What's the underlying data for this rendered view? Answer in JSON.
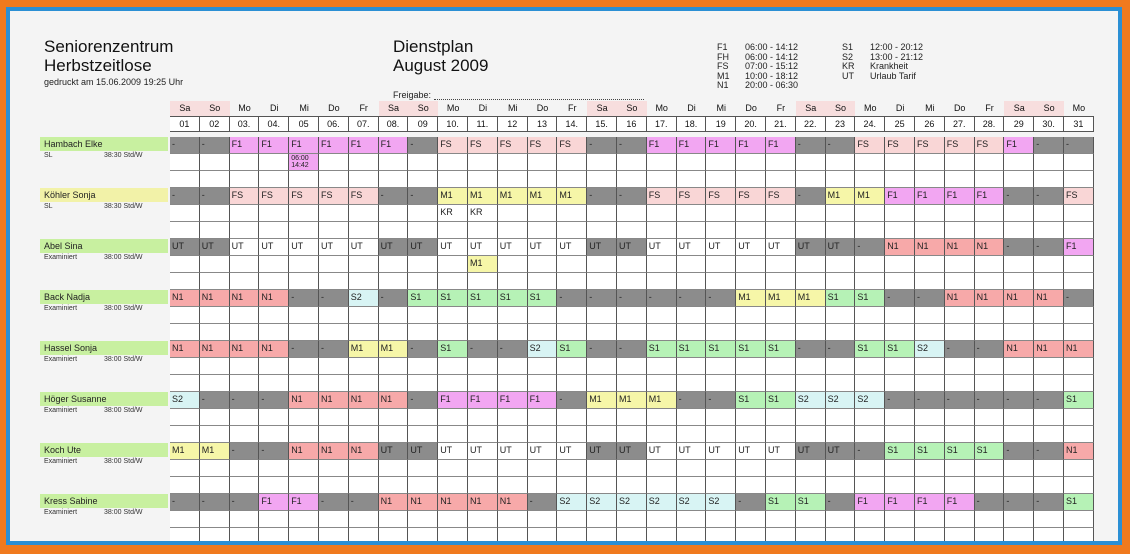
{
  "header": {
    "org_line1": "Seniorenzentrum",
    "org_line2": "Herbstzeitlose",
    "printed": "gedruckt am 15.06.2009  19:25 Uhr",
    "plan_line1": "Dienstplan",
    "plan_line2": "August 2009",
    "freigabe": "Freigabe:"
  },
  "legend_left": [
    {
      "code": "F1",
      "time": "06:00 - 14:12"
    },
    {
      "code": "FH",
      "time": "06:00 - 14:12"
    },
    {
      "code": "FS",
      "time": "07:00 - 15:12"
    },
    {
      "code": "M1",
      "time": "10:00 - 18:12"
    },
    {
      "code": "N1",
      "time": "20:00 - 06:30"
    }
  ],
  "legend_right": [
    {
      "code": "S1",
      "time": "12:00 - 20:12"
    },
    {
      "code": "S2",
      "time": "13:00 - 21:12"
    },
    {
      "code": "KR",
      "time": "Krankheit"
    },
    {
      "code": "UT",
      "time": "Urlaub Tarif"
    }
  ],
  "colors": {
    "F1": "#f2a6f2",
    "FS": "#f9d6d6",
    "M1": "#f6f6a8",
    "S1": "#b6f2b6",
    "S2": "#d8f4f4",
    "N1": "#f7a9a9",
    "dash": "#8c8c8c",
    "UT": "#ffffff",
    "UT_weekend": "#8c8c8c",
    "name_default": "#c8f0a0",
    "name_yellow": "#f2f2a8"
  },
  "days": {
    "names": [
      "Sa",
      "So",
      "Mo",
      "Di",
      "Mi",
      "Do",
      "Fr",
      "Sa",
      "So",
      "Mo",
      "Di",
      "Mi",
      "Do",
      "Fr",
      "Sa",
      "So",
      "Mo",
      "Di",
      "Mi",
      "Do",
      "Fr",
      "Sa",
      "So",
      "Mo",
      "Di",
      "Mi",
      "Do",
      "Fr",
      "Sa",
      "So",
      "Mo"
    ],
    "numbers": [
      "01",
      "02",
      "03.",
      "04.",
      "05",
      "06.",
      "07.",
      "08.",
      "09",
      "10.",
      "11.",
      "12",
      "13",
      "14.",
      "15.",
      "16",
      "17.",
      "18.",
      "19",
      "20.",
      "21.",
      "22.",
      "23",
      "24.",
      "25",
      "26",
      "27.",
      "28.",
      "29",
      "30.",
      "31"
    ]
  },
  "employees": [
    {
      "name": "Hambach Elke",
      "role": "SL",
      "hours": "38:30 Std/W",
      "shifts": [
        "-",
        "-",
        "F1",
        "F1",
        "F1",
        "F1",
        "F1",
        "F1",
        "-",
        "FS",
        "FS",
        "FS",
        "FS",
        "FS",
        "-",
        "-",
        "F1",
        "F1",
        "F1",
        "F1",
        "F1",
        "-",
        "-",
        "FS",
        "FS",
        "FS",
        "FS",
        "FS",
        "F1",
        "-",
        "-"
      ],
      "second": {
        "4": "06:00 14:42"
      }
    },
    {
      "name": "Köhler Sonja",
      "role": "SL",
      "hours": "38:30 Std/W",
      "shifts": [
        "-",
        "-",
        "FS",
        "FS",
        "FS",
        "FS",
        "FS",
        "-",
        "-",
        "M1",
        "M1",
        "M1",
        "M1",
        "M1",
        "-",
        "-",
        "FS",
        "FS",
        "FS",
        "FS",
        "FS",
        "-",
        "M1",
        "M1",
        "F1",
        "F1",
        "F1",
        "F1",
        "-",
        "-",
        "FS"
      ],
      "second": {
        "9": "KR",
        "10": "KR"
      }
    },
    {
      "name": "Abel Sina",
      "role": "Examiniert",
      "hours": "38:00 Std/W",
      "shifts": [
        "UT",
        "UT",
        "UT",
        "UT",
        "UT",
        "UT",
        "UT",
        "UT",
        "UT",
        "UT",
        "UT",
        "UT",
        "UT",
        "UT",
        "UT",
        "UT",
        "UT",
        "UT",
        "UT",
        "UT",
        "UT",
        "UT",
        "UT",
        "-",
        "N1",
        "N1",
        "N1",
        "N1",
        "-",
        "-",
        "F1"
      ],
      "second": {
        "10": "M1"
      }
    },
    {
      "name": "Back Nadja",
      "role": "Examiniert",
      "hours": "38:00 Std/W",
      "shifts": [
        "N1",
        "N1",
        "N1",
        "N1",
        "-",
        "-",
        "S2",
        "-",
        "S1",
        "S1",
        "S1",
        "S1",
        "S1",
        "-",
        "-",
        "-",
        "-",
        "-",
        "-",
        "M1",
        "M1",
        "M1",
        "S1",
        "S1",
        "-",
        "-",
        "N1",
        "N1",
        "N1",
        "N1",
        "-"
      ],
      "second": {}
    },
    {
      "name": "Hassel Sonja",
      "role": "Examiniert",
      "hours": "38:00 Std/W",
      "shifts": [
        "N1",
        "N1",
        "N1",
        "N1",
        "-",
        "-",
        "M1",
        "M1",
        "-",
        "S1",
        "-",
        "-",
        "S2",
        "S1",
        "-",
        "-",
        "S1",
        "S1",
        "S1",
        "S1",
        "S1",
        "-",
        "-",
        "S1",
        "S1",
        "S2",
        "-",
        "-",
        "N1",
        "N1",
        "N1"
      ],
      "second": {}
    },
    {
      "name": "Höger Susanne",
      "role": "Examiniert",
      "hours": "38:00 Std/W",
      "shifts": [
        "S2",
        "-",
        "-",
        "-",
        "N1",
        "N1",
        "N1",
        "N1",
        "-",
        "F1",
        "F1",
        "F1",
        "F1",
        "-",
        "M1",
        "M1",
        "M1",
        "-",
        "-",
        "S1",
        "S1",
        "S2",
        "S2",
        "S2",
        "-",
        "-",
        "-",
        "-",
        "-",
        "-",
        "S1"
      ],
      "second": {}
    },
    {
      "name": "Koch Ute",
      "role": "Examiniert",
      "hours": "38:00 Std/W",
      "shifts": [
        "M1",
        "M1",
        "-",
        "-",
        "N1",
        "N1",
        "N1",
        "UT",
        "UT",
        "UT",
        "UT",
        "UT",
        "UT",
        "UT",
        "UT",
        "UT",
        "UT",
        "UT",
        "UT",
        "UT",
        "UT",
        "UT",
        "UT",
        "-",
        "S1",
        "S1",
        "S1",
        "S1",
        "-",
        "-",
        "N1"
      ],
      "second": {}
    },
    {
      "name": "Kress Sabine",
      "role": "Examiniert",
      "hours": "38:00 Std/W",
      "shifts": [
        "-",
        "-",
        "-",
        "F1",
        "F1",
        "-",
        "-",
        "N1",
        "N1",
        "N1",
        "N1",
        "N1",
        "-",
        "S2",
        "S2",
        "S2",
        "S2",
        "S2",
        "S2",
        "-",
        "S1",
        "S1",
        "-",
        "F1",
        "F1",
        "F1",
        "F1",
        "-",
        "-",
        "-",
        "S1"
      ],
      "second": {}
    }
  ]
}
